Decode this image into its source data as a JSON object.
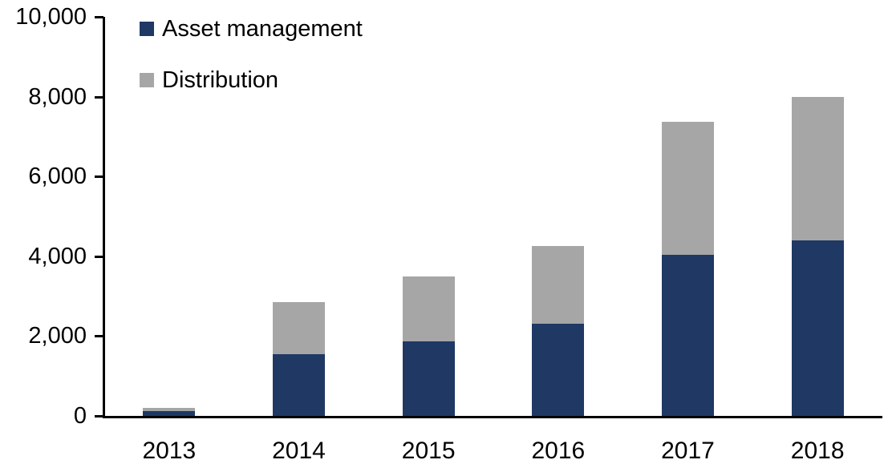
{
  "chart_data": {
    "type": "bar",
    "stacked": true,
    "title": "",
    "xlabel": "",
    "ylabel": "",
    "categories": [
      "2013",
      "2014",
      "2015",
      "2016",
      "2017",
      "2018"
    ],
    "series": [
      {
        "name": "Asset management",
        "color": "#1F3864",
        "values": [
          120,
          1550,
          1870,
          2300,
          4040,
          4400
        ]
      },
      {
        "name": "Distribution",
        "color": "#A6A6A6",
        "values": [
          80,
          1300,
          1630,
          1950,
          3330,
          3600
        ]
      }
    ],
    "totals": [
      200,
      2850,
      3500,
      4250,
      7370,
      8000
    ],
    "ylim": [
      0,
      10000
    ],
    "yticks": [
      0,
      2000,
      4000,
      6000,
      8000,
      10000
    ],
    "ytick_labels": [
      "0",
      "2,000",
      "4,000",
      "6,000",
      "8,000",
      "10,000"
    ],
    "grid": false,
    "legend_position": "top-left",
    "axis_color": "#000000",
    "text_color": "#000000"
  }
}
